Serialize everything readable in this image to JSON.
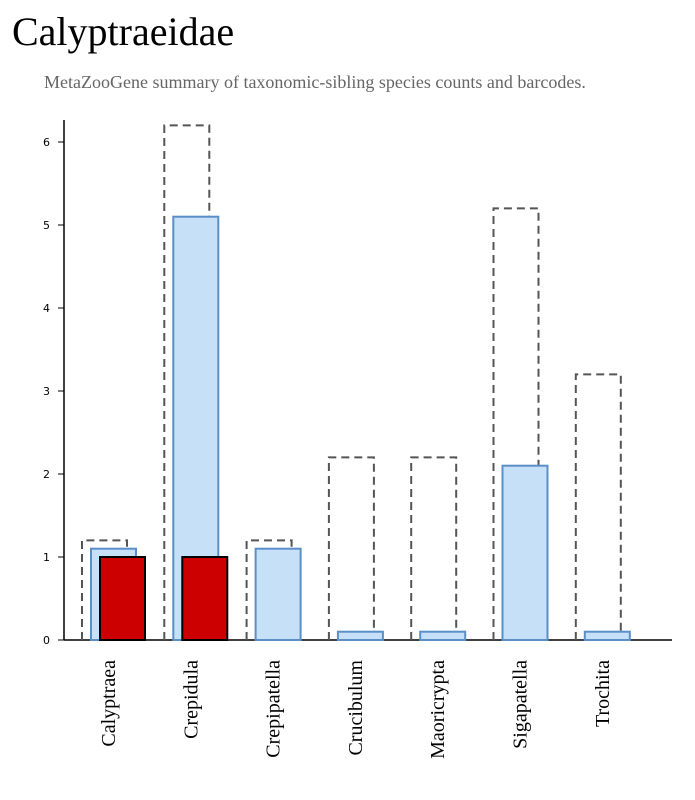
{
  "header": {
    "title": "Calyptraeidae",
    "subtitle": "MetaZooGene summary of taxonomic-sibling species counts and barcodes."
  },
  "chart_data": {
    "type": "bar",
    "categories": [
      "Calyptraea",
      "Crepidula",
      "Crepipatella",
      "Crucibulum",
      "Maoricrypta",
      "Sigapatella",
      "Trochita"
    ],
    "series": [
      {
        "style": "dashed-outline",
        "color": "#555555",
        "values": [
          1.2,
          6.2,
          1.2,
          2.2,
          2.2,
          5.2,
          3.2
        ]
      },
      {
        "style": "filled",
        "color": "#c6e0f7",
        "stroke": "#5b8fc7",
        "values": [
          1.1,
          5.1,
          1.1,
          0.1,
          0.1,
          2.1,
          0.1
        ]
      },
      {
        "style": "filled",
        "color": "#cc0000",
        "stroke": "#000000",
        "values": [
          1,
          1,
          0,
          0,
          0,
          0,
          0
        ]
      }
    ],
    "yticks": [
      0,
      1,
      2,
      3,
      4,
      5,
      6
    ],
    "ylim": [
      0,
      6.3
    ],
    "grid": false
  }
}
